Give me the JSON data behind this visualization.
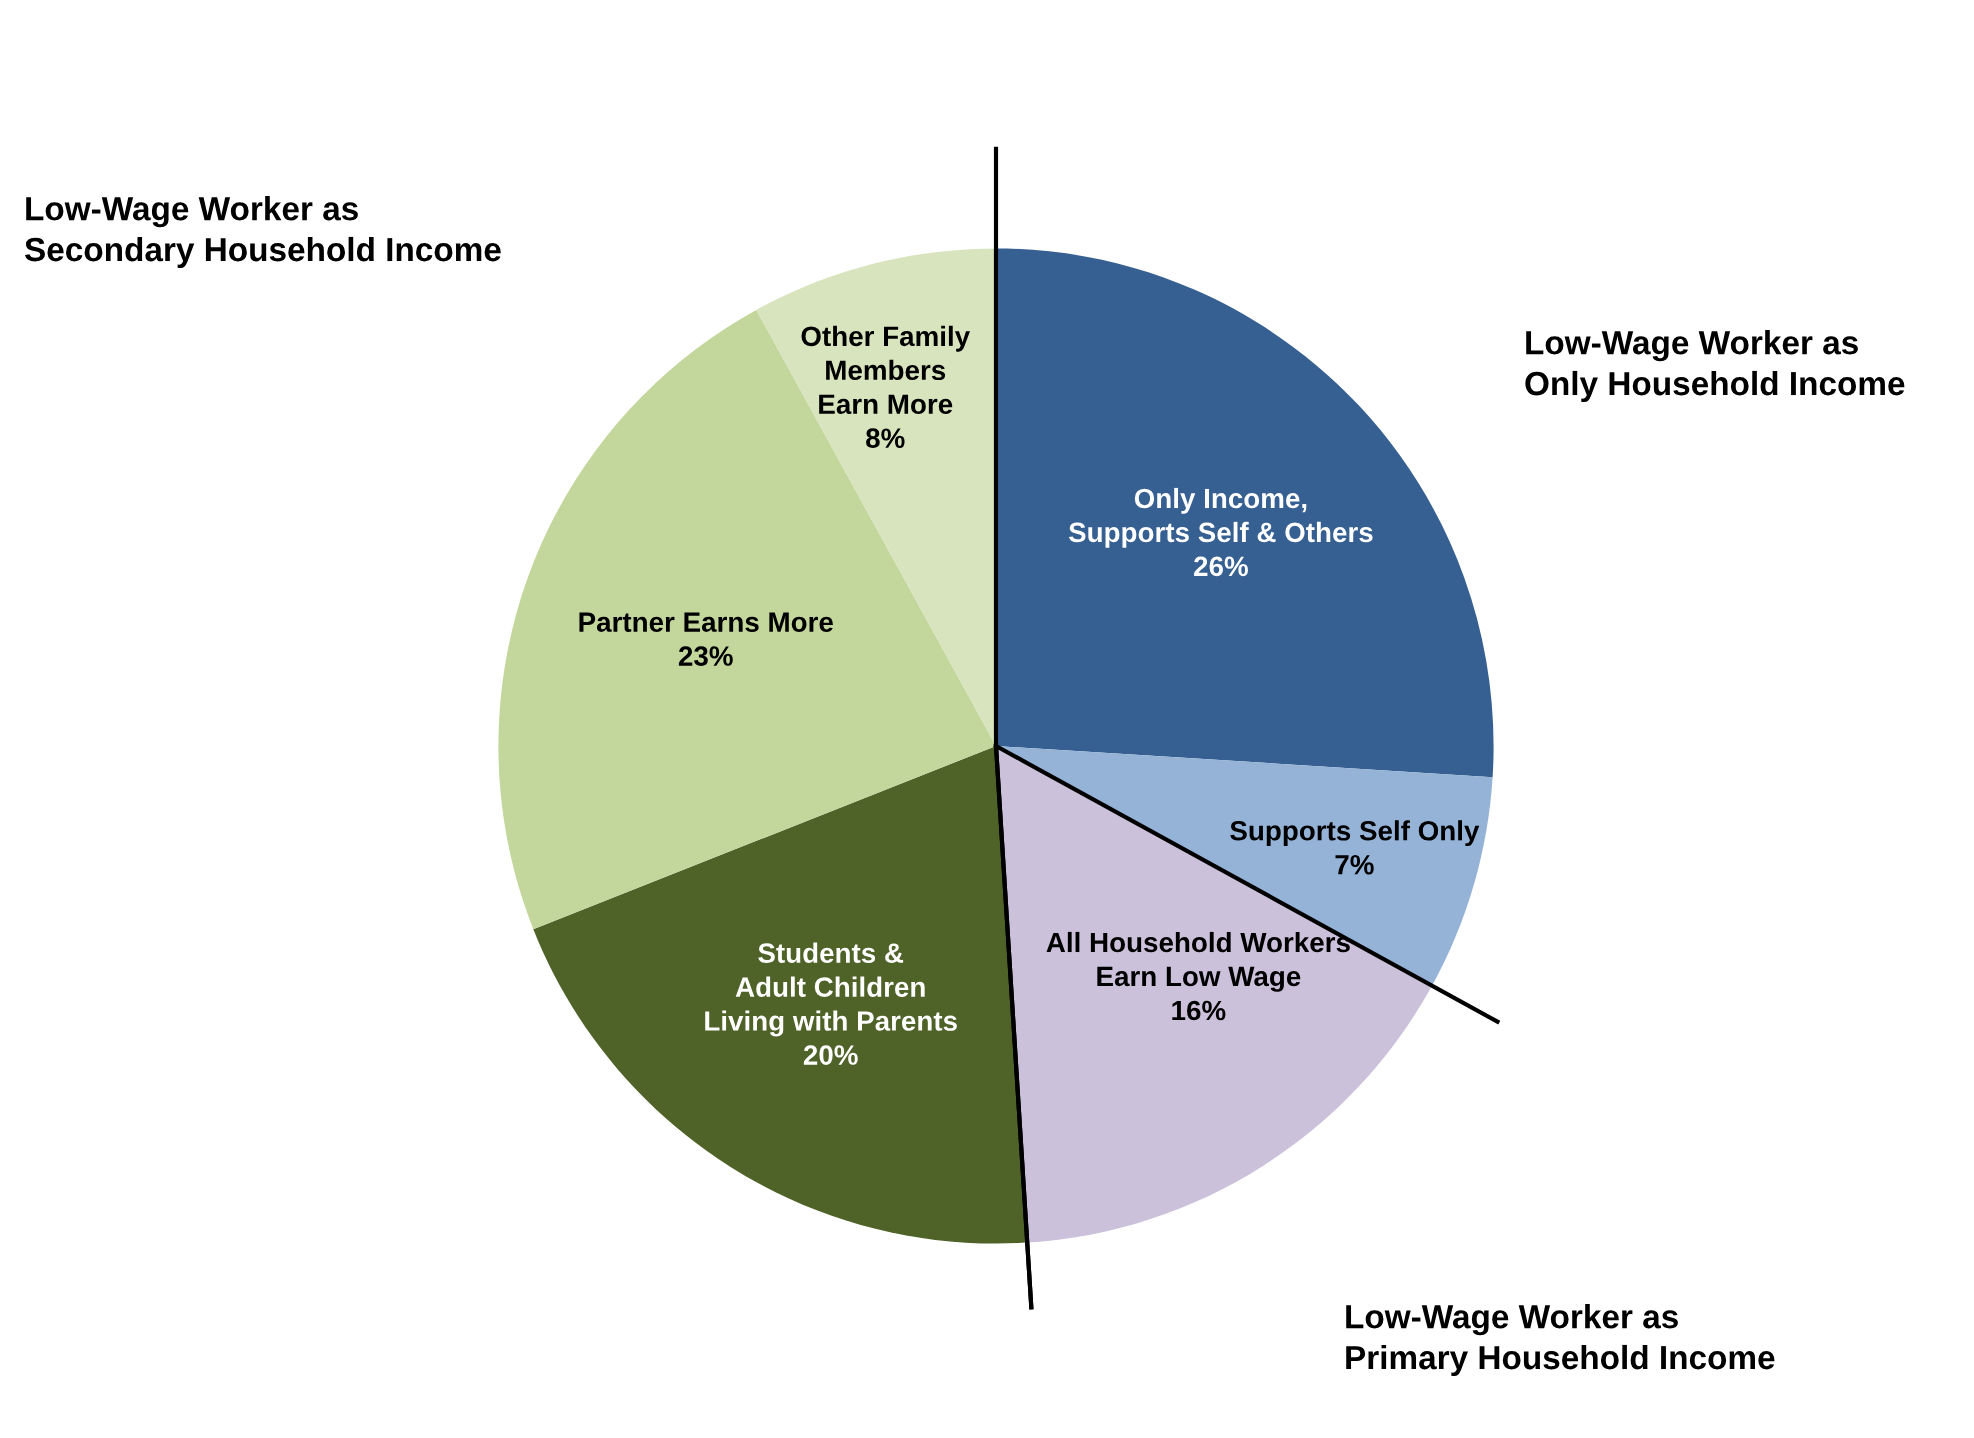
{
  "chart_data": {
    "type": "pie",
    "categories": [
      "Only Income,\nSupports Self & Others",
      "Supports Self Only",
      "All Household Workers\nEarn Low Wage",
      "Students &\nAdult Children\nLiving with Parents",
      "Partner Earns More",
      "Other Family\nMembers\nEarn More"
    ],
    "values": [
      26,
      7,
      16,
      20,
      23,
      8
    ],
    "value_labels": [
      "26%",
      "7%",
      "16%",
      "20%",
      "23%",
      "8%"
    ],
    "colors": [
      "#376092",
      "#95b3d7",
      "#ccc1da",
      "#4f6228",
      "#c3d69b",
      "#d7e4bd"
    ],
    "annotations": [
      "Low-Wage Worker as\nOnly Household Income",
      "Low-Wage Worker as\nPrimary Household Income",
      "Low-Wage Worker as\nSecondary Household Income"
    ]
  }
}
